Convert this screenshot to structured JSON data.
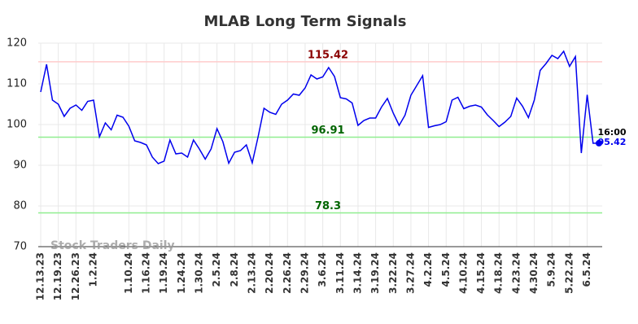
{
  "chart_data": {
    "type": "line",
    "title": "MLAB Long Term Signals",
    "categories": [
      "12.13.23",
      null,
      null,
      "12.19.23",
      null,
      null,
      "12.26.23",
      null,
      null,
      "1.2.24",
      null,
      null,
      null,
      null,
      null,
      "1.10.24",
      null,
      null,
      "1.16.24",
      null,
      null,
      "1.19.24",
      null,
      null,
      "1.24.24",
      null,
      null,
      "1.30.24",
      null,
      null,
      "2.5.24",
      null,
      null,
      "2.8.24",
      null,
      null,
      "2.13.24",
      null,
      null,
      "2.20.24",
      null,
      null,
      "2.26.24",
      null,
      null,
      "2.29.24",
      null,
      null,
      "3.6.24",
      null,
      null,
      "3.11.24",
      null,
      null,
      "3.14.24",
      null,
      null,
      "3.19.24",
      null,
      null,
      "3.22.24",
      null,
      null,
      "3.27.24",
      null,
      null,
      "4.2.24",
      null,
      null,
      "4.5.24",
      null,
      null,
      "4.10.24",
      null,
      null,
      "4.15.24",
      null,
      null,
      "4.18.24",
      null,
      null,
      "4.23.24",
      null,
      null,
      "4.30.24",
      null,
      null,
      "5.9.24",
      null,
      null,
      "5.22.24",
      null,
      null,
      "6.5.24",
      null,
      null
    ],
    "series": [
      {
        "name": "MLAB",
        "color": "#0000ee",
        "values": [
          108,
          114.8,
          106,
          105,
          102,
          104,
          104.8,
          103.5,
          105.7,
          106,
          97,
          100.4,
          98.7,
          102.3,
          101.8,
          99.6,
          96,
          95.6,
          95,
          92,
          90.4,
          91,
          96.2,
          92.8,
          93,
          92,
          96.2,
          94,
          91.5,
          94,
          99,
          95.8,
          90.5,
          93.2,
          93.6,
          95,
          90.6,
          97,
          104,
          103,
          102.5,
          105,
          106,
          107.5,
          107.2,
          109,
          112.2,
          111.2,
          111.7,
          114,
          111.8,
          106.6,
          106.3,
          105.3,
          99.8,
          101,
          101.6,
          101.6,
          104.3,
          106.4,
          102.8,
          99.8,
          102.3,
          107.2,
          109.6,
          112,
          99.3,
          99.7,
          100,
          100.7,
          106,
          106.7,
          103.9,
          104.5,
          104.8,
          104.3,
          102.4,
          101,
          99.5,
          100.6,
          102,
          106.5,
          104.5,
          101.7,
          106,
          113.3,
          115,
          117,
          116.2,
          118,
          114.3,
          116.7,
          93,
          107.3,
          95.4,
          95.42
        ]
      }
    ],
    "hlines": [
      {
        "value": 115.42,
        "color": "#ffcccc",
        "text_color": "#8b0000"
      },
      {
        "value": 96.91,
        "color": "#90ee90",
        "text_color": "#006400"
      },
      {
        "value": 78.3,
        "color": "#90ee90",
        "text_color": "#006400"
      }
    ],
    "last_time": "16:00",
    "watermark": "Stock Traders Daily",
    "ylim": [
      70,
      120
    ],
    "yticks": [
      70,
      80,
      90,
      100,
      110,
      120
    ],
    "grid": true
  }
}
